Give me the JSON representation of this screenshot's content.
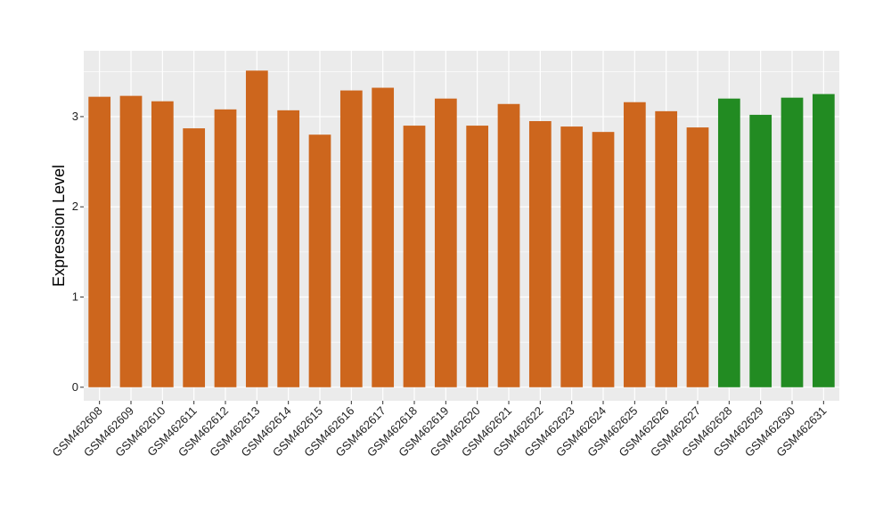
{
  "chart_data": {
    "type": "bar",
    "title": "",
    "xlabel": "",
    "ylabel": "Expression Level",
    "ylim": [
      -0.15,
      3.73
    ],
    "yticks": [
      0,
      1,
      2,
      3
    ],
    "grid": true,
    "categories": [
      "GSM462608",
      "GSM462609",
      "GSM462610",
      "GSM462611",
      "GSM462612",
      "GSM462613",
      "GSM462614",
      "GSM462615",
      "GSM462616",
      "GSM462617",
      "GSM462618",
      "GSM462619",
      "GSM462620",
      "GSM462621",
      "GSM462622",
      "GSM462623",
      "GSM462624",
      "GSM462625",
      "GSM462626",
      "GSM462627",
      "GSM462628",
      "GSM462629",
      "GSM462630",
      "GSM462631"
    ],
    "values": [
      3.22,
      3.23,
      3.17,
      2.87,
      3.08,
      3.51,
      3.07,
      2.8,
      3.29,
      3.32,
      2.9,
      3.2,
      2.9,
      3.14,
      2.95,
      2.89,
      2.83,
      3.16,
      3.06,
      2.88,
      3.2,
      3.02,
      3.21,
      3.25
    ],
    "group_colors": [
      "#cd661d",
      "#cd661d",
      "#cd661d",
      "#cd661d",
      "#cd661d",
      "#cd661d",
      "#cd661d",
      "#cd661d",
      "#cd661d",
      "#cd661d",
      "#cd661d",
      "#cd661d",
      "#cd661d",
      "#cd661d",
      "#cd661d",
      "#cd661d",
      "#cd661d",
      "#cd661d",
      "#cd661d",
      "#cd661d",
      "#228b22",
      "#228b22",
      "#228b22",
      "#228b22"
    ],
    "panel_background": "#ebebeb",
    "grid_color": "#ffffff"
  }
}
